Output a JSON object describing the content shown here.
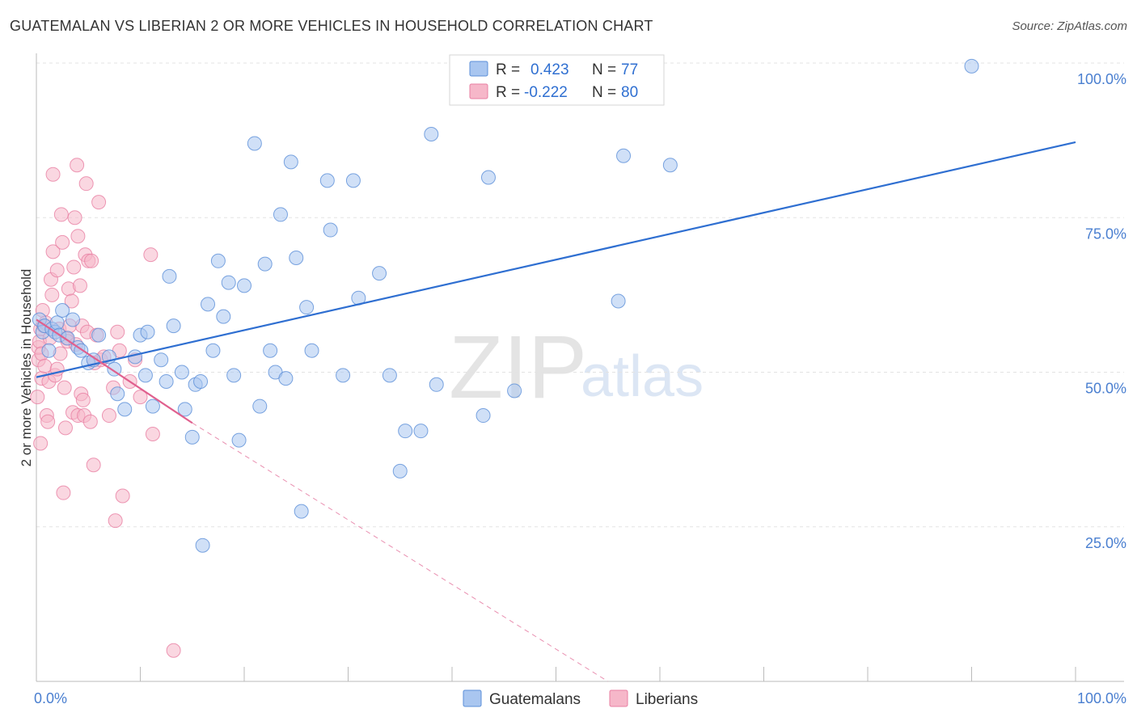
{
  "title": "GUATEMALAN VS LIBERIAN 2 OR MORE VEHICLES IN HOUSEHOLD CORRELATION CHART",
  "source": "Source: ZipAtlas.com",
  "watermark": {
    "zip": "ZIP",
    "atlas": "atlas"
  },
  "colors": {
    "blue_fill": "#a9c6f0",
    "blue_stroke": "#5b8fd8",
    "blue_line": "#2f6fd1",
    "pink_fill": "#f6b7c9",
    "pink_stroke": "#e87fa2",
    "pink_line": "#e0608e",
    "tick_text": "#4a7fd0",
    "grid": "#e3e3e3"
  },
  "legend": {
    "r_label": "R =",
    "n_label": "N =",
    "rows": [
      {
        "series": "Guatemalans",
        "r": "0.423",
        "n": "77"
      },
      {
        "series": "Liberians",
        "r": "-0.222",
        "n": "80"
      }
    ]
  },
  "bottom_legend": [
    "Guatemalans",
    "Liberians"
  ],
  "chart_data": {
    "type": "scatter",
    "title": "GUATEMALAN VS LIBERIAN 2 OR MORE VEHICLES IN HOUSEHOLD CORRELATION CHART",
    "xlabel": "",
    "ylabel": "2 or more Vehicles in Household",
    "xlim": [
      0,
      100
    ],
    "ylim": [
      0,
      100
    ],
    "x_tick_labels": [
      "0.0%",
      "100.0%"
    ],
    "y_ticks": [
      25,
      50,
      75,
      100
    ],
    "y_tick_labels": [
      "25.0%",
      "50.0%",
      "75.0%",
      "100.0%"
    ],
    "series": [
      {
        "name": "Guatemalans",
        "r": 0.423,
        "n": 77,
        "trend": {
          "x0": 0,
          "y0": 49.2,
          "x1": 100,
          "y1": 87.2
        },
        "points": [
          [
            0.3,
            58.5
          ],
          [
            0.6,
            56.5
          ],
          [
            0.8,
            57.5
          ],
          [
            1.2,
            53.5
          ],
          [
            1.5,
            57
          ],
          [
            1.8,
            56.5
          ],
          [
            2.0,
            58
          ],
          [
            2.2,
            56
          ],
          [
            2.5,
            60
          ],
          [
            3.0,
            55.5
          ],
          [
            3.5,
            58.5
          ],
          [
            4.0,
            54
          ],
          [
            4.3,
            53.5
          ],
          [
            5.0,
            51.5
          ],
          [
            5.5,
            52
          ],
          [
            6.0,
            56
          ],
          [
            7.0,
            52.5
          ],
          [
            7.5,
            50.5
          ],
          [
            7.8,
            46.5
          ],
          [
            8.5,
            44
          ],
          [
            9.5,
            52.5
          ],
          [
            10,
            56
          ],
          [
            10.5,
            49.5
          ],
          [
            10.7,
            56.5
          ],
          [
            11.2,
            44.5
          ],
          [
            12,
            52
          ],
          [
            12.5,
            48.5
          ],
          [
            12.8,
            65.5
          ],
          [
            13.2,
            57.5
          ],
          [
            14.0,
            50
          ],
          [
            14.3,
            44
          ],
          [
            15.0,
            39.5
          ],
          [
            15.3,
            48
          ],
          [
            15.8,
            48.5
          ],
          [
            16.0,
            22
          ],
          [
            16.5,
            61
          ],
          [
            17,
            53.5
          ],
          [
            17.5,
            68
          ],
          [
            18,
            59
          ],
          [
            18.5,
            64.5
          ],
          [
            19,
            49.5
          ],
          [
            19.5,
            39
          ],
          [
            20,
            64
          ],
          [
            21,
            87
          ],
          [
            21.5,
            44.5
          ],
          [
            22,
            67.5
          ],
          [
            22.5,
            53.5
          ],
          [
            23,
            50
          ],
          [
            23.5,
            75.5
          ],
          [
            24,
            49
          ],
          [
            24.5,
            84
          ],
          [
            25,
            68.5
          ],
          [
            25.5,
            27.5
          ],
          [
            26,
            60.5
          ],
          [
            26.5,
            53.5
          ],
          [
            28,
            81
          ],
          [
            28.3,
            73
          ],
          [
            29.5,
            49.5
          ],
          [
            30.5,
            81
          ],
          [
            31,
            62
          ],
          [
            33,
            66
          ],
          [
            34,
            49.5
          ],
          [
            35,
            34
          ],
          [
            35.5,
            40.5
          ],
          [
            37,
            40.5
          ],
          [
            38,
            88.5
          ],
          [
            38.5,
            48
          ],
          [
            43,
            43
          ],
          [
            43.5,
            81.5
          ],
          [
            46,
            47
          ],
          [
            56,
            61.5
          ],
          [
            56.5,
            85
          ],
          [
            61,
            83.5
          ],
          [
            90,
            99.5
          ]
        ]
      },
      {
        "name": "Liberians",
        "r": -0.222,
        "n": 80,
        "trend": {
          "x0": 0,
          "y0": 58.5,
          "x1": 15,
          "y1": 41.8
        },
        "trend_dashed": {
          "x0": 15,
          "y0": 41.8,
          "x1": 55,
          "y1": 0
        },
        "points": [
          [
            0.1,
            46
          ],
          [
            0.2,
            52
          ],
          [
            0.2,
            54
          ],
          [
            0.3,
            55
          ],
          [
            0.4,
            57
          ],
          [
            0.4,
            38.5
          ],
          [
            0.5,
            49
          ],
          [
            0.5,
            53
          ],
          [
            0.6,
            60
          ],
          [
            0.7,
            57.5
          ],
          [
            0.8,
            51
          ],
          [
            0.9,
            58
          ],
          [
            1.0,
            43
          ],
          [
            1.1,
            42
          ],
          [
            1.2,
            48.5
          ],
          [
            1.3,
            55.5
          ],
          [
            1.4,
            65
          ],
          [
            1.5,
            62.5
          ],
          [
            1.6,
            69.5
          ],
          [
            1.6,
            82
          ],
          [
            1.8,
            49.5
          ],
          [
            2.0,
            50.5
          ],
          [
            2.0,
            66.5
          ],
          [
            2.2,
            57
          ],
          [
            2.3,
            53
          ],
          [
            2.4,
            75.5
          ],
          [
            2.5,
            71
          ],
          [
            2.6,
            30.5
          ],
          [
            2.7,
            47.5
          ],
          [
            2.8,
            41
          ],
          [
            2.9,
            55.5
          ],
          [
            3.0,
            55
          ],
          [
            3.1,
            63.5
          ],
          [
            3.2,
            57.5
          ],
          [
            3.4,
            61.5
          ],
          [
            3.5,
            43.5
          ],
          [
            3.6,
            67
          ],
          [
            3.7,
            75
          ],
          [
            3.8,
            54.5
          ],
          [
            3.9,
            83.5
          ],
          [
            4.0,
            43
          ],
          [
            4.0,
            72
          ],
          [
            4.2,
            64
          ],
          [
            4.3,
            46.5
          ],
          [
            4.4,
            57.5
          ],
          [
            4.5,
            45.5
          ],
          [
            4.6,
            43
          ],
          [
            4.7,
            69
          ],
          [
            4.8,
            80.5
          ],
          [
            4.9,
            56.5
          ],
          [
            5.0,
            68
          ],
          [
            5.2,
            42
          ],
          [
            5.3,
            68
          ],
          [
            5.5,
            35
          ],
          [
            5.6,
            51.5
          ],
          [
            5.8,
            56
          ],
          [
            6.0,
            77.5
          ],
          [
            6.2,
            52
          ],
          [
            6.5,
            52.5
          ],
          [
            7.0,
            43
          ],
          [
            7.4,
            47.5
          ],
          [
            7.6,
            26
          ],
          [
            7.8,
            56.5
          ],
          [
            8.0,
            53.5
          ],
          [
            8.3,
            30
          ],
          [
            9.0,
            48.5
          ],
          [
            9.5,
            52
          ],
          [
            10,
            46
          ],
          [
            11,
            69
          ],
          [
            11.2,
            40
          ],
          [
            13.2,
            5
          ]
        ]
      }
    ]
  }
}
